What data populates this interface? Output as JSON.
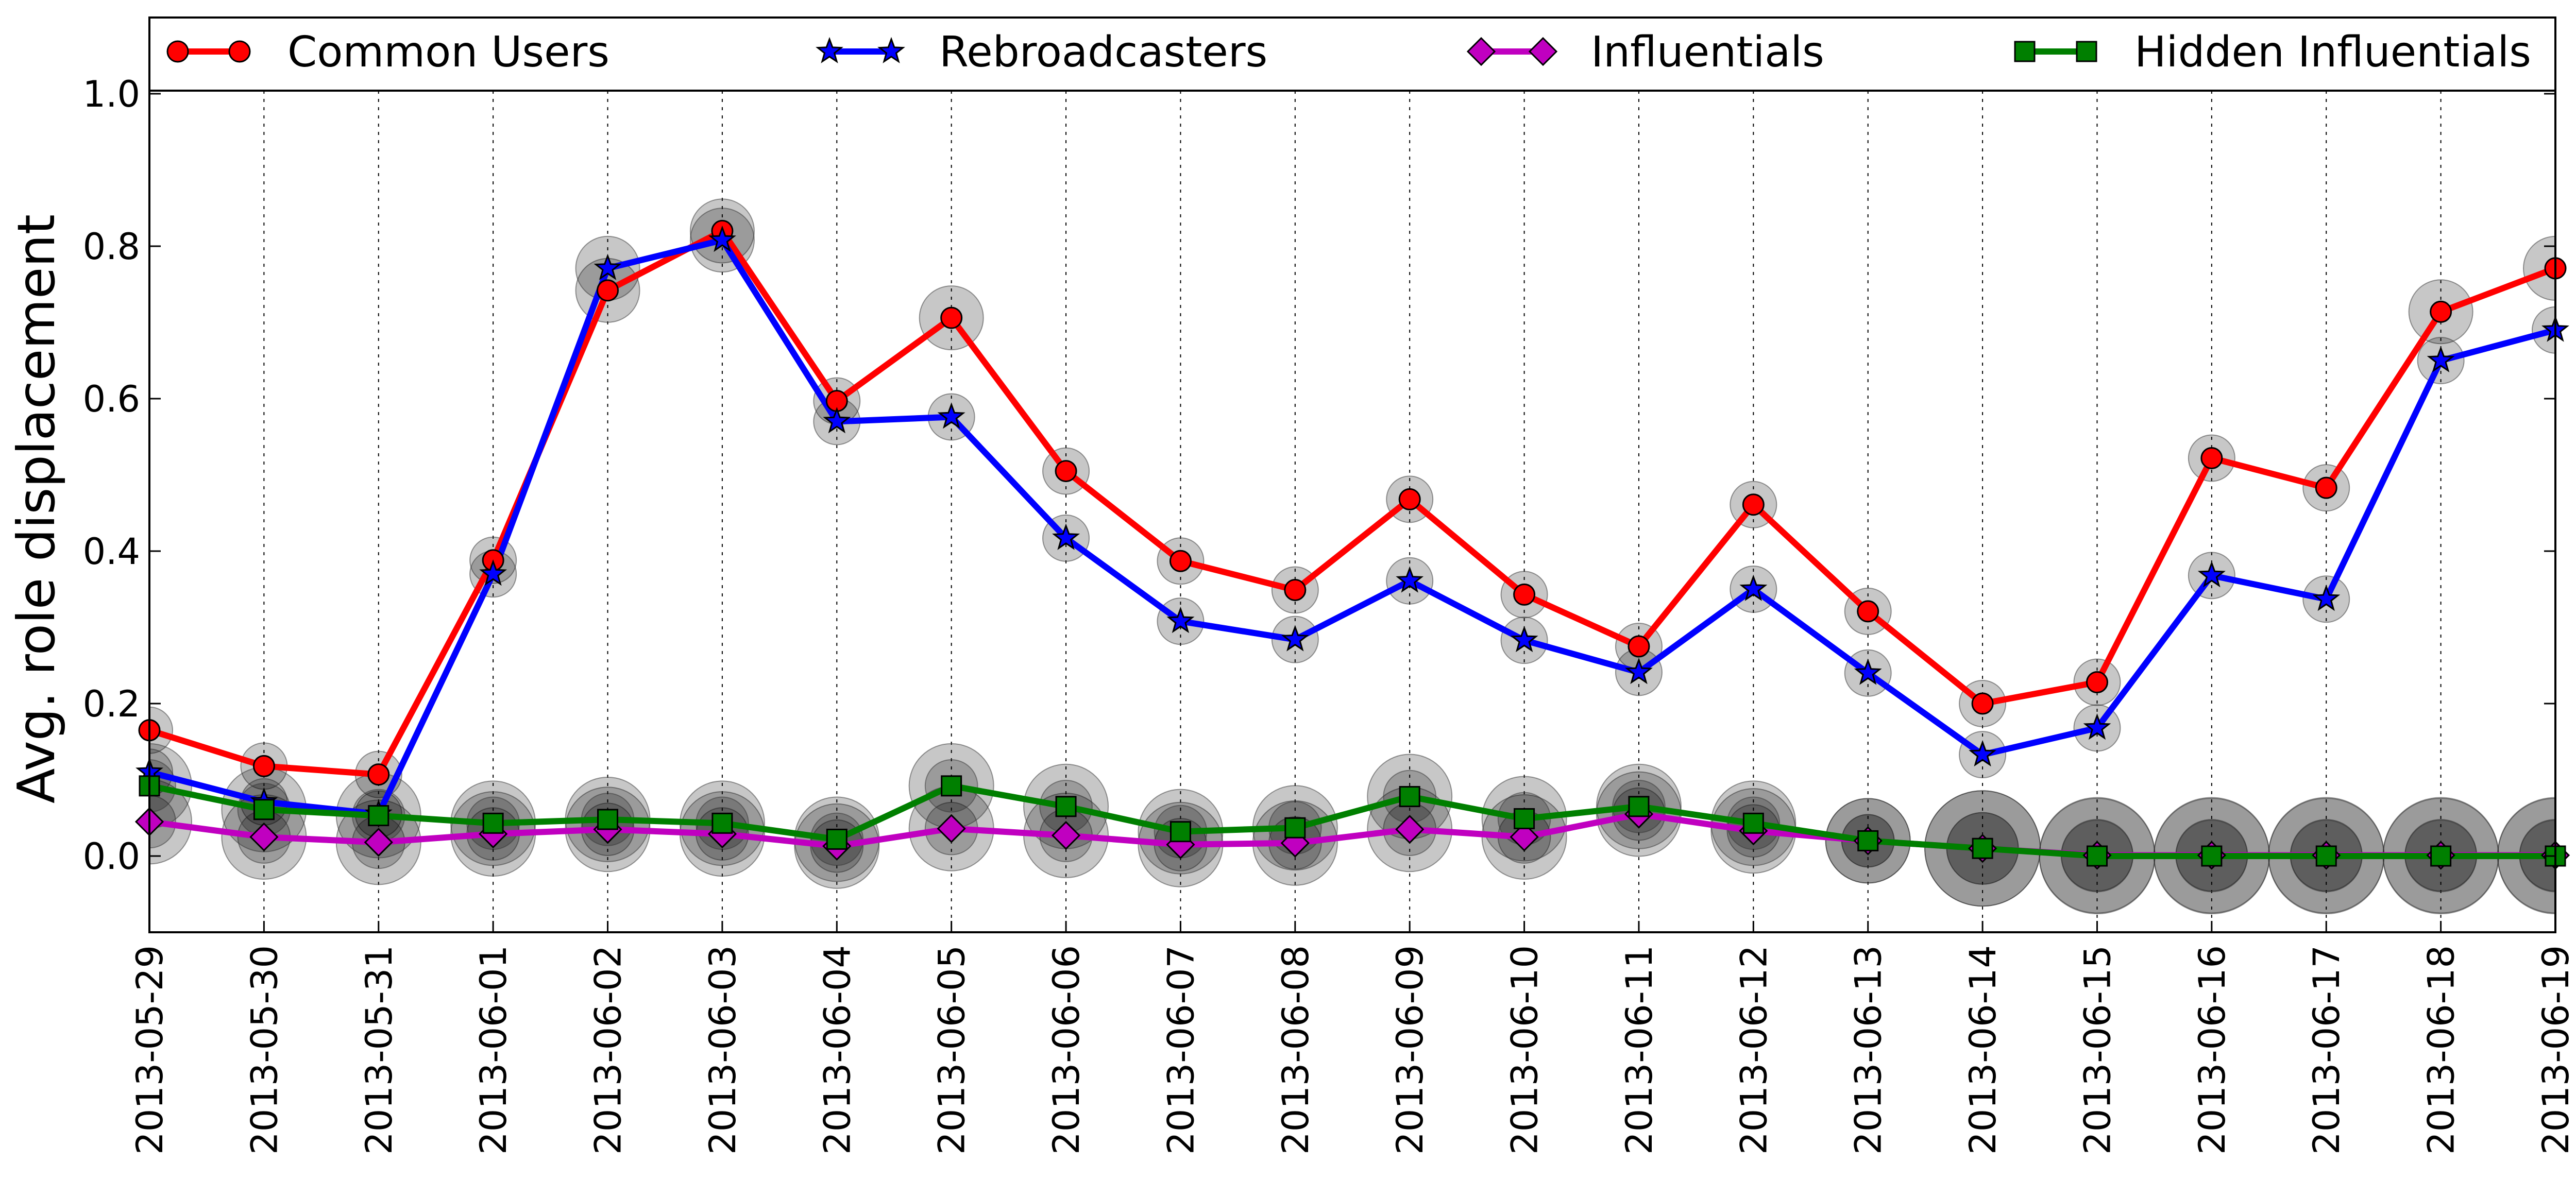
{
  "chart_data": {
    "type": "line",
    "title": "",
    "xlabel": "",
    "ylabel": "Avg. role displacement",
    "ylim": [
      -0.1,
      1.1
    ],
    "yticks": [
      "0.0",
      "0.2",
      "0.4",
      "0.6",
      "0.8",
      "1.0"
    ],
    "grid": "x",
    "legend_position": "top",
    "categories": [
      "2013-05-29",
      "2013-05-30",
      "2013-05-31",
      "2013-06-01",
      "2013-06-02",
      "2013-06-03",
      "2013-06-04",
      "2013-06-05",
      "2013-06-06",
      "2013-06-07",
      "2013-06-08",
      "2013-06-09",
      "2013-06-10",
      "2013-06-11",
      "2013-06-12",
      "2013-06-13",
      "2013-06-14",
      "2013-06-15",
      "2013-06-16",
      "2013-06-17",
      "2013-06-18",
      "2013-06-19"
    ],
    "series": [
      {
        "name": "Common Users",
        "color": "#ff0000",
        "marker": "circle",
        "values": [
          0.165,
          0.118,
          0.107,
          0.388,
          0.742,
          0.82,
          0.597,
          0.706,
          0.505,
          0.387,
          0.349,
          0.468,
          0.343,
          0.275,
          0.461,
          0.321,
          0.2,
          0.228,
          0.522,
          0.483,
          0.714,
          0.771
        ]
      },
      {
        "name": "Rebroadcasters",
        "color": "#0000ff",
        "marker": "star",
        "values": [
          0.11,
          0.071,
          0.055,
          0.37,
          0.771,
          0.808,
          0.57,
          0.576,
          0.417,
          0.308,
          0.284,
          0.361,
          0.283,
          0.241,
          0.35,
          0.24,
          0.133,
          0.168,
          0.368,
          0.337,
          0.65,
          0.69
        ]
      },
      {
        "name": "Influentials",
        "color": "#c000c0",
        "marker": "diamond",
        "values": [
          0.045,
          0.025,
          0.018,
          0.029,
          0.035,
          0.029,
          0.013,
          0.036,
          0.027,
          0.015,
          0.017,
          0.035,
          0.025,
          0.055,
          0.033,
          0.02,
          0.01,
          0.001,
          0.001,
          0.001,
          0.001,
          0.001
        ]
      },
      {
        "name": "Hidden Influentials",
        "color": "#007f00",
        "marker": "square",
        "values": [
          0.092,
          0.061,
          0.053,
          0.043,
          0.048,
          0.043,
          0.022,
          0.092,
          0.065,
          0.032,
          0.037,
          0.078,
          0.049,
          0.065,
          0.043,
          0.02,
          0.01,
          0.0,
          0.0,
          0.0,
          0.0,
          0.0
        ]
      }
    ]
  }
}
